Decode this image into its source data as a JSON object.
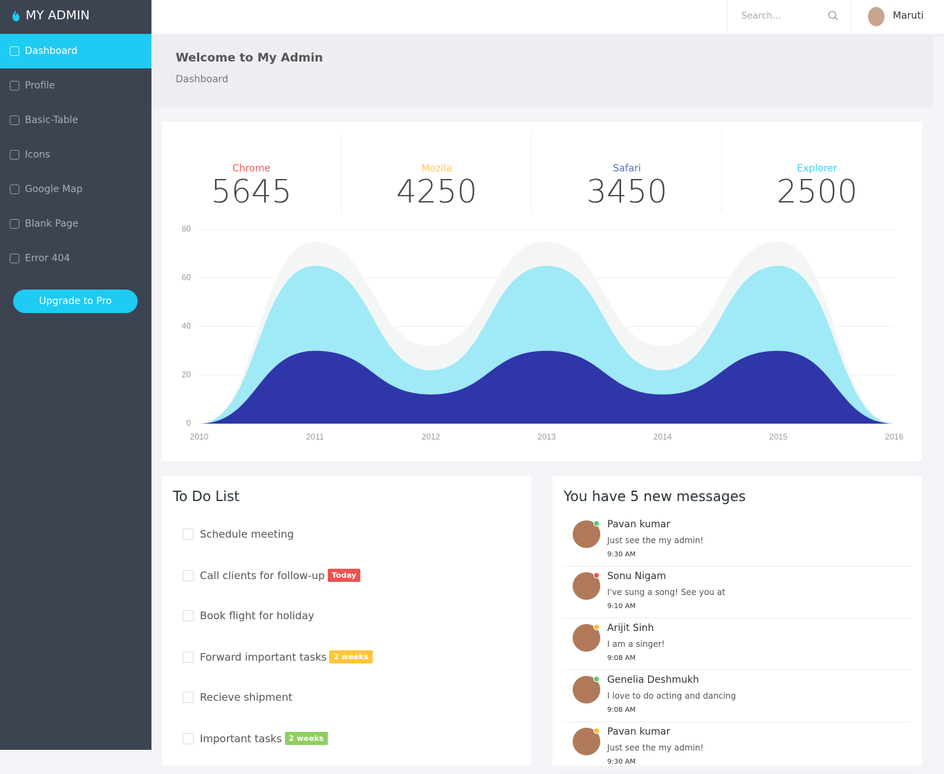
{
  "sidebar": {
    "brand": "MY ADMIN",
    "menu": [
      "Dashboard",
      "Profile",
      "Basic-Table",
      "Icons",
      "Google Map",
      "Blank Page",
      "Error 404"
    ],
    "button": "Upgrade to Pro"
  },
  "topbar": {
    "search": "Search...",
    "user": "Maruti"
  },
  "header": {
    "title": "Welcome to My Admin",
    "breadcrumb": "Dashboard"
  },
  "stats": [
    {
      "label": "Chrome",
      "value": 5645,
      "color": "#f75c5c"
    },
    {
      "label": "Mozila",
      "value": 4250,
      "color": "#ffc36d"
    },
    {
      "label": "Safari",
      "value": 3450,
      "color": "#5d6bc4"
    },
    {
      "label": "Explorer",
      "value": 2500,
      "color": "#3ed0f0"
    }
  ],
  "chart_data": {
    "type": "area",
    "x": [
      2010,
      2011,
      2012,
      2013,
      2014,
      2015,
      2016
    ],
    "xlim": [
      2010,
      2016
    ],
    "xticks": [
      2010,
      2011,
      2012,
      2013,
      2014,
      2015,
      2016
    ],
    "ylim": [
      0,
      80
    ],
    "yticks": [
      0,
      20,
      40,
      60,
      80
    ],
    "grid": true,
    "series": [
      {
        "color": "#f4f6f6",
        "values": [
          0,
          75,
          32,
          75,
          32,
          75,
          0
        ]
      },
      {
        "color": "#a0e9f6",
        "values": [
          0,
          65,
          22,
          65,
          22,
          65,
          0
        ]
      },
      {
        "color": "#2f36a9",
        "values": [
          0,
          30,
          12,
          30,
          12,
          30,
          0
        ]
      }
    ]
  },
  "todo": {
    "title": "To Do List",
    "items": [
      {
        "text": "Schedule meeting"
      },
      {
        "text": "Call clients for follow-up",
        "badge": "Today",
        "badge_color": "#ef5350"
      },
      {
        "text": "Book flight for holiday"
      },
      {
        "text": "Forward important tasks",
        "badge": "2 weeks",
        "badge_color": "#ffc63b"
      },
      {
        "text": "Recieve shipment"
      },
      {
        "text": "Important tasks",
        "badge": "2 weeks",
        "badge_color": "#8fcf5f"
      }
    ]
  },
  "messages": {
    "title": "You have 5 new messages",
    "items": [
      {
        "name": "Pavan kumar",
        "text": "Just see the my admin!",
        "time": "9:30 AM",
        "status": "#55ce63"
      },
      {
        "name": "Sonu Nigam",
        "text": "I've sung a song! See you at",
        "time": "9:10 AM",
        "status": "#ef5350"
      },
      {
        "name": "Arijit Sinh",
        "text": "I am a singer!",
        "time": "9:08 AM",
        "status": "#ffbc34"
      },
      {
        "name": "Genelia Deshmukh",
        "text": "I love to do acting and dancing",
        "time": "9:08 AM",
        "status": "#55ce63"
      },
      {
        "name": "Pavan kumar",
        "text": "Just see the my admin!",
        "time": "9:30 AM",
        "status": "#ffbc34"
      }
    ]
  }
}
